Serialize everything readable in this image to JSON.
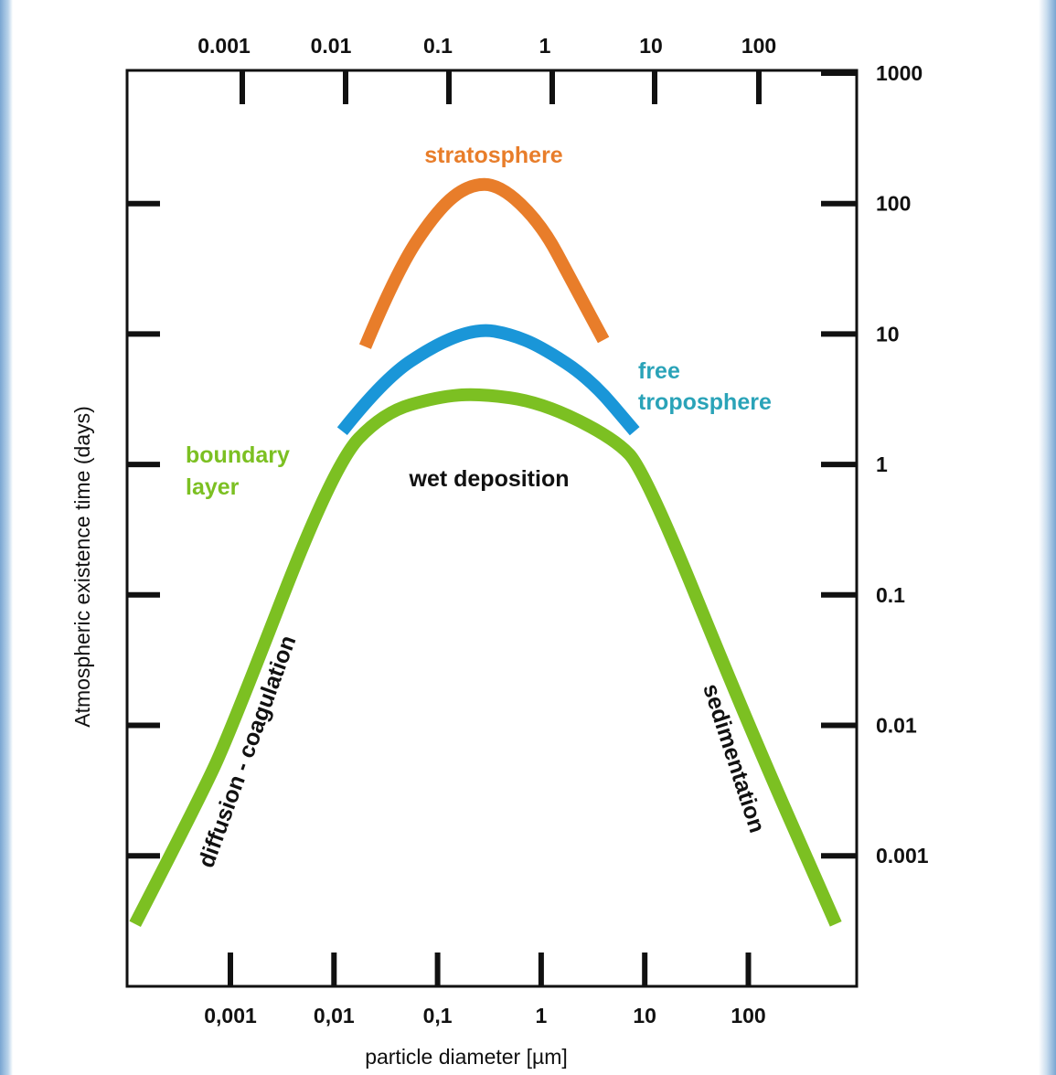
{
  "chart_data": {
    "type": "line",
    "title": "",
    "xlabel": "particle diameter [µm]",
    "ylabel": "Atmospheric existence time (days)",
    "x_scale": "log",
    "y_scale": "log",
    "x_ticks": [
      "0,001",
      "0,01",
      "0,1",
      "1",
      "10",
      "100"
    ],
    "x_ticks_top": [
      "0.001",
      "0.01",
      "0.1",
      "1",
      "10",
      "100"
    ],
    "y_ticks": [
      "1000",
      "100",
      "10",
      "1",
      "0.1",
      "0.01",
      "0.001"
    ],
    "xlim": [
      0.0001,
      1000
    ],
    "ylim": [
      0.0001,
      1000
    ],
    "grid": false,
    "series": [
      {
        "name": "stratosphere",
        "color": "#e87d2a",
        "points": [
          [
            0.02,
            8
          ],
          [
            0.04,
            30
          ],
          [
            0.1,
            90
          ],
          [
            0.2,
            140
          ],
          [
            0.4,
            140
          ],
          [
            1,
            70
          ],
          [
            2,
            25
          ],
          [
            4,
            9
          ]
        ]
      },
      {
        "name": "free troposphere",
        "color": "#1a96d8",
        "points": [
          [
            0.012,
            1.8
          ],
          [
            0.03,
            4.5
          ],
          [
            0.1,
            8.5
          ],
          [
            0.25,
            11
          ],
          [
            0.5,
            10
          ],
          [
            1,
            8
          ],
          [
            3,
            4.5
          ],
          [
            8,
            1.8
          ]
        ]
      },
      {
        "name": "boundary layer",
        "color": "#7cc022",
        "points": [
          [
            0.00012,
            0.0003
          ],
          [
            0.0005,
            0.0027
          ],
          [
            0.001,
            0.0089
          ],
          [
            0.01,
            1
          ],
          [
            0.03,
            2.5
          ],
          [
            0.1,
            3.3
          ],
          [
            0.25,
            3.5
          ],
          [
            1,
            3.0
          ],
          [
            5,
            1.6
          ],
          [
            10,
            0.9
          ],
          [
            100,
            0.01
          ],
          [
            700,
            0.0003
          ]
        ]
      }
    ],
    "annotations": {
      "stratosphere": "stratosphere",
      "free_line1": "free",
      "free_line2": "troposphere",
      "boundary_line1": "boundary",
      "boundary_line2": "layer",
      "wet_deposition": "wet deposition",
      "diffusion": "diffusion - coagulation",
      "sedimentation": "sedimentation"
    }
  }
}
